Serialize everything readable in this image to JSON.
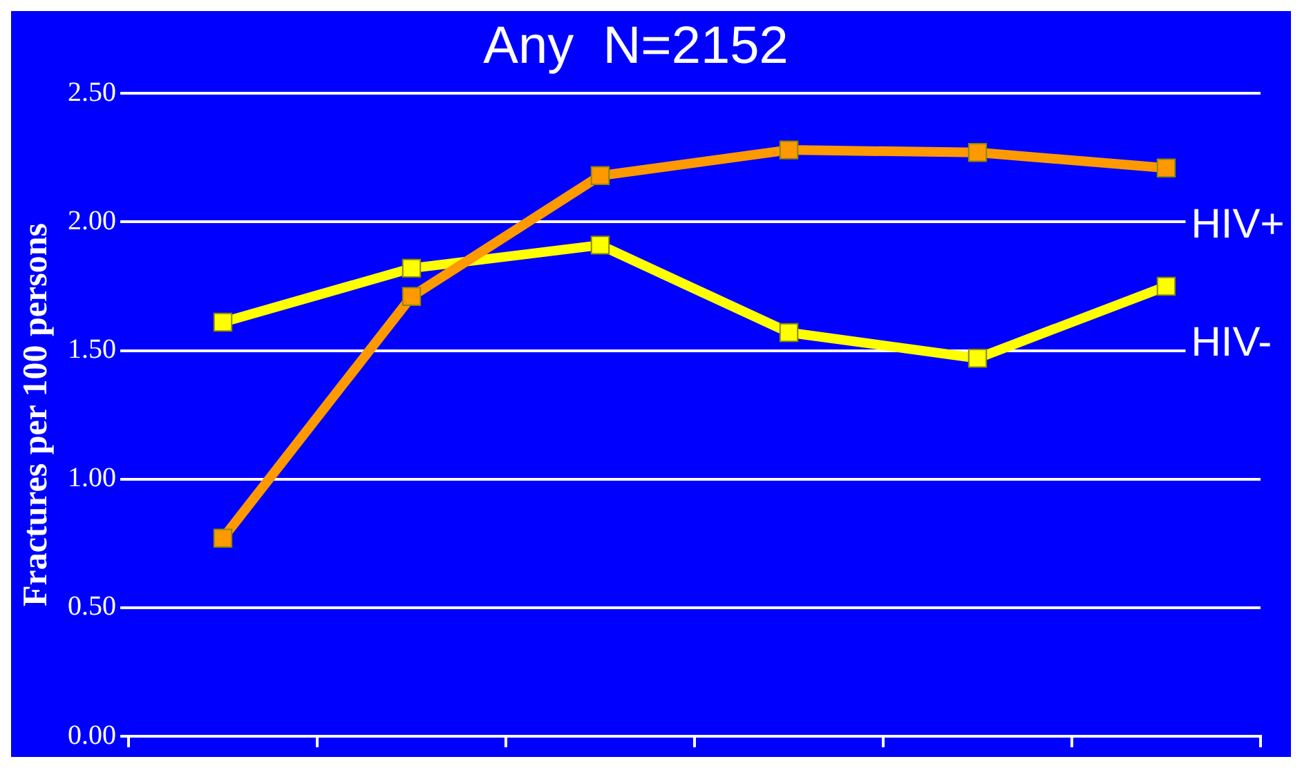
{
  "chart_data": {
    "type": "line",
    "title": "Any  N=2152",
    "ylabel": "Fractures per 100 persons",
    "categories": [
      null,
      null,
      null,
      null,
      null,
      null
    ],
    "series": [
      {
        "name": "HIV+",
        "color": "#ff9900",
        "values": [
          0.77,
          1.71,
          2.18,
          2.28,
          2.27,
          2.21
        ]
      },
      {
        "name": "HIV-",
        "color": "#ffff00",
        "values": [
          1.61,
          1.82,
          1.91,
          1.57,
          1.47,
          1.75
        ]
      }
    ],
    "ylim": [
      0,
      2.5
    ],
    "yticks": [
      {
        "value": 0,
        "label": "0.00"
      },
      {
        "value": 0.5,
        "label": "0.50"
      },
      {
        "value": 1,
        "label": "1.00"
      },
      {
        "value": 1.5,
        "label": "1.50"
      },
      {
        "value": 2,
        "label": "2.00"
      },
      {
        "value": 2.5,
        "label": "2.50"
      }
    ],
    "grid": "y",
    "legend": false,
    "marker": "square",
    "line_style": "solid",
    "tick_labels": "y"
  }
}
